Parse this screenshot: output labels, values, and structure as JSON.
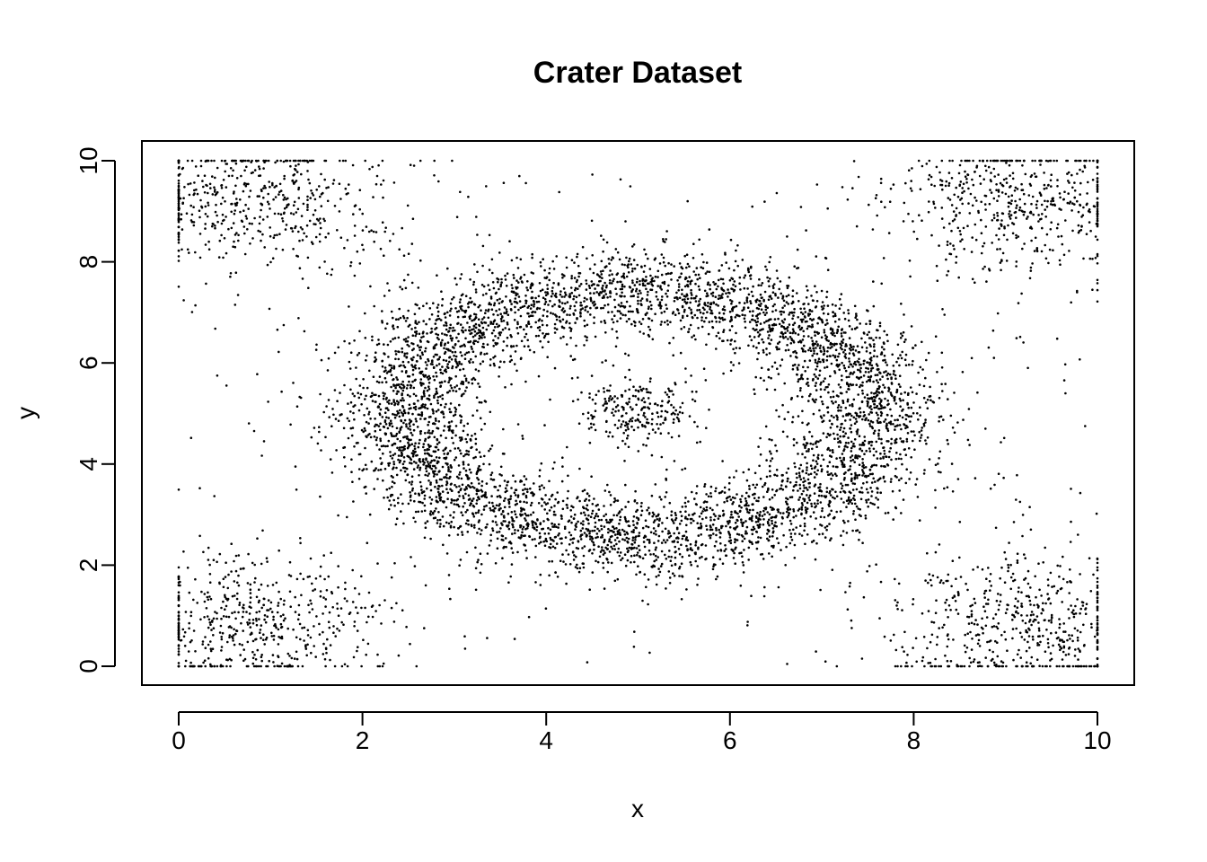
{
  "chart_data": {
    "type": "scatter",
    "title": "Crater Dataset",
    "xlabel": "x",
    "ylabel": "y",
    "xlim": [
      0,
      10
    ],
    "ylim": [
      0,
      10
    ],
    "xticks": [
      "0",
      "2",
      "4",
      "6",
      "8",
      "10"
    ],
    "yticks": [
      "0",
      "2",
      "4",
      "6",
      "8",
      "10"
    ],
    "grid": false,
    "legend": "none",
    "point_color": "#000000",
    "series": [
      {
        "components": [
          {
            "shape": "ring",
            "center": [
              5,
              5
            ],
            "radius": [
              2.55,
              2.45
            ],
            "spread": 0.42,
            "count": 5200
          },
          {
            "shape": "blob",
            "center": [
              5,
              5
            ],
            "spread": 0.32,
            "count": 220
          },
          {
            "shape": "corner",
            "center": [
              0.8,
              9.3
            ],
            "spread": [
              0.7,
              0.7
            ],
            "count": 520
          },
          {
            "shape": "corner",
            "center": [
              9.2,
              9.2
            ],
            "spread": [
              0.7,
              0.7
            ],
            "count": 520
          },
          {
            "shape": "corner",
            "center": [
              0.8,
              0.8
            ],
            "spread": [
              0.7,
              0.7
            ],
            "count": 520
          },
          {
            "shape": "corner",
            "center": [
              9.2,
              0.8
            ],
            "spread": [
              0.7,
              0.7
            ],
            "count": 520
          },
          {
            "shape": "uniform",
            "count": 450
          }
        ]
      }
    ]
  }
}
